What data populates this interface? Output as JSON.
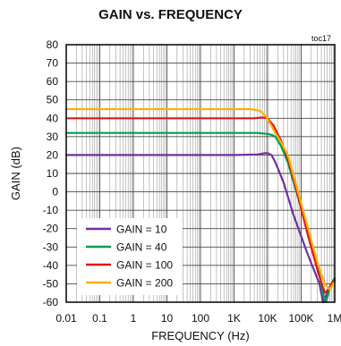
{
  "chart_data": {
    "type": "line",
    "title": "GAIN vs. FREQUENCY",
    "annotation": "toc17",
    "xlabel": "FREQUENCY (Hz)",
    "ylabel": "GAIN (dB)",
    "xscale": "log",
    "xlim": [
      0.01,
      1000000
    ],
    "ylim": [
      -60,
      80
    ],
    "xticks": [
      0.01,
      0.1,
      1,
      10,
      100,
      1000,
      10000,
      100000,
      1000000
    ],
    "xtick_labels": [
      "0.01",
      "0.1",
      "1",
      "10",
      "100",
      "1K",
      "10K",
      "100K",
      "1M"
    ],
    "yticks": [
      -60,
      -50,
      -40,
      -30,
      -20,
      -10,
      0,
      10,
      20,
      30,
      40,
      50,
      60,
      70,
      80
    ],
    "ytick_labels": [
      "-60",
      "-50",
      "-40",
      "-30",
      "-20",
      "-10",
      "0",
      "10",
      "20",
      "30",
      "40",
      "50",
      "60",
      "70",
      "80"
    ],
    "grid": true,
    "legend_position": "lower-left",
    "series": [
      {
        "name": "GAIN = 10",
        "color": "#7030a0",
        "x": [
          0.01,
          1000,
          5000,
          8000,
          10000,
          13000,
          16000,
          20000,
          30000,
          60000,
          150000,
          350000,
          450000,
          600000,
          800000,
          1000000
        ],
        "y": [
          20,
          20,
          20.3,
          21,
          21,
          20,
          17,
          13,
          5,
          -13,
          -33,
          -50,
          -60,
          -55,
          -50,
          -47
        ]
      },
      {
        "name": "GAIN = 40",
        "color": "#00a050",
        "x": [
          0.01,
          1000,
          5000,
          10000,
          13000,
          17000,
          25000,
          40000,
          80000,
          180000,
          350000,
          450000,
          550000,
          700000,
          900000,
          1000000
        ],
        "y": [
          32,
          32,
          32,
          31.5,
          31,
          30,
          25,
          16,
          -3,
          -25,
          -45,
          -56,
          -60,
          -53,
          -48,
          -47
        ]
      },
      {
        "name": "GAIN = 100",
        "color": "#e01818",
        "x": [
          0.01,
          1000,
          4000,
          7000,
          10000,
          15000,
          25000,
          40000,
          70000,
          150000,
          300000,
          500000,
          650000,
          800000,
          1000000
        ],
        "y": [
          40,
          40,
          40,
          40.5,
          40,
          36,
          28,
          18,
          2,
          -22,
          -42,
          -55,
          -53,
          -50,
          -48
        ]
      },
      {
        "name": "GAIN = 200",
        "color": "#ffb000",
        "x": [
          0.01,
          1000,
          3000,
          6000,
          9000,
          12000,
          17000,
          25000,
          40000,
          70000,
          150000,
          300000,
          500000,
          700000,
          900000,
          1000000
        ],
        "y": [
          45,
          45,
          45,
          44,
          41,
          37,
          32,
          27,
          20,
          4,
          -18,
          -38,
          -50,
          -53,
          -50,
          -49
        ]
      }
    ]
  }
}
